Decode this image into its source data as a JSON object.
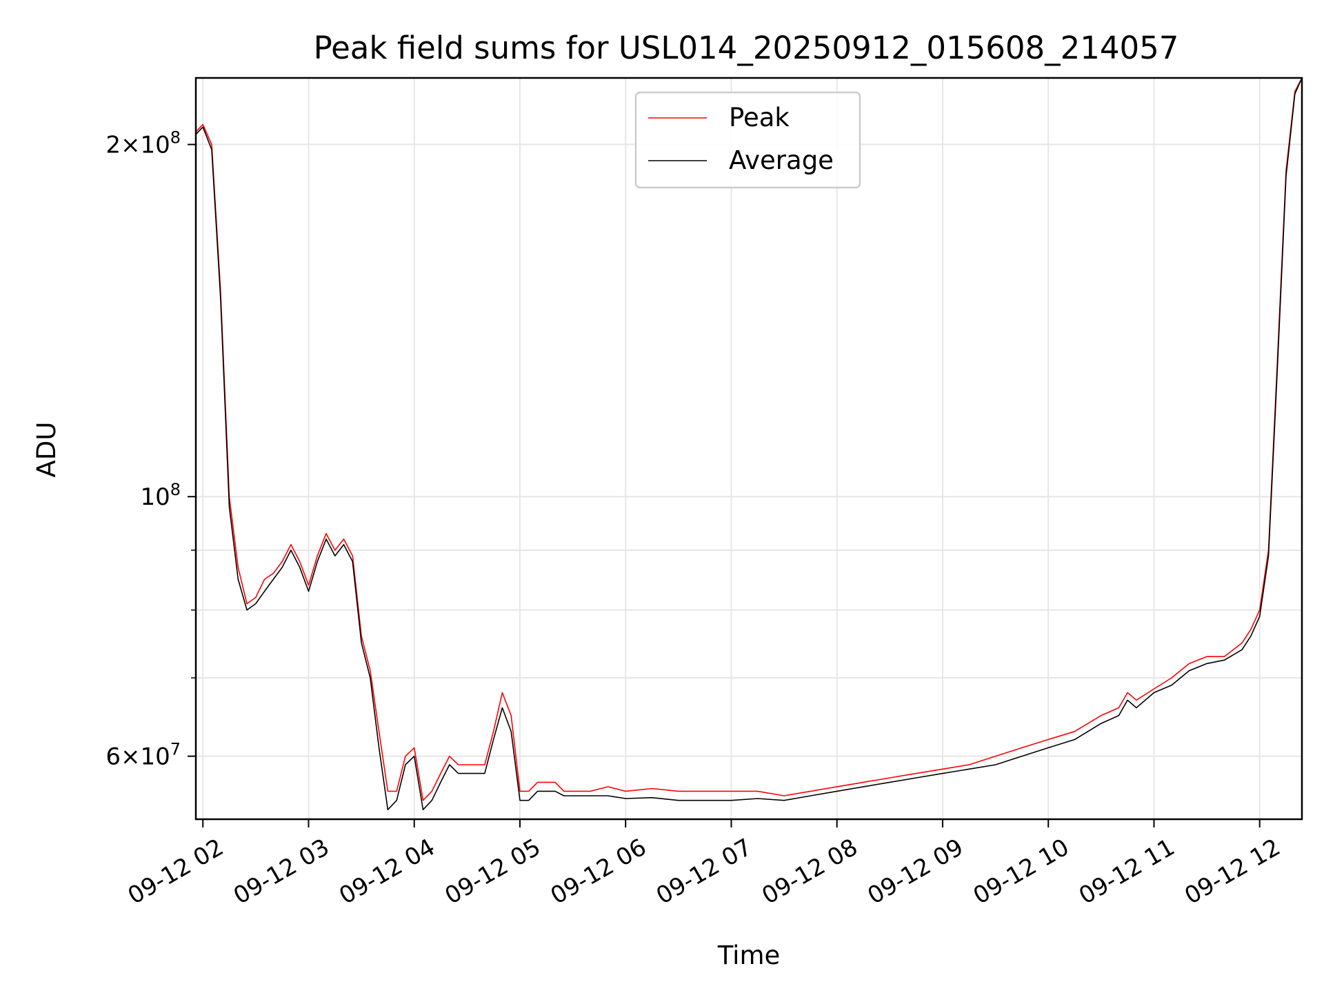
{
  "chart_data": {
    "type": "line",
    "title": "Peak field sums for USL014_20250912_015608_214057",
    "xlabel": "Time",
    "ylabel": "ADU",
    "y_scale": "log",
    "grid": true,
    "legend_position": "upper center",
    "x_range": [
      "09-12 01:56",
      "09-12 12:24"
    ],
    "y_range": [
      53000000,
      228000000
    ],
    "x_ticks": [
      "09-12 02",
      "09-12 03",
      "09-12 04",
      "09-12 05",
      "09-12 06",
      "09-12 07",
      "09-12 08",
      "09-12 09",
      "09-12 10",
      "09-12 11",
      "09-12 12"
    ],
    "y_ticks": [
      {
        "value": 60000000,
        "base": "6",
        "exp": "7"
      },
      {
        "value": 100000000,
        "base": "",
        "exp": "8"
      },
      {
        "value": 200000000,
        "base": "2",
        "exp": "8"
      }
    ],
    "y_minor_ticks": [
      70000000,
      80000000,
      90000000
    ],
    "series": [
      {
        "name": "Peak",
        "color": "#ff0000",
        "x": [
          "09-12 01:56",
          "09-12 02:00",
          "09-12 02:05",
          "09-12 02:10",
          "09-12 02:15",
          "09-12 02:20",
          "09-12 02:25",
          "09-12 02:30",
          "09-12 02:35",
          "09-12 02:40",
          "09-12 02:45",
          "09-12 02:50",
          "09-12 02:55",
          "09-12 03:00",
          "09-12 03:05",
          "09-12 03:10",
          "09-12 03:15",
          "09-12 03:20",
          "09-12 03:25",
          "09-12 03:30",
          "09-12 03:35",
          "09-12 03:40",
          "09-12 03:45",
          "09-12 03:50",
          "09-12 03:55",
          "09-12 04:00",
          "09-12 04:05",
          "09-12 04:10",
          "09-12 04:15",
          "09-12 04:20",
          "09-12 04:25",
          "09-12 04:30",
          "09-12 04:35",
          "09-12 04:40",
          "09-12 04:45",
          "09-12 04:50",
          "09-12 04:55",
          "09-12 05:00",
          "09-12 05:05",
          "09-12 05:10",
          "09-12 05:15",
          "09-12 05:20",
          "09-12 05:25",
          "09-12 05:30",
          "09-12 05:40",
          "09-12 05:50",
          "09-12 06:00",
          "09-12 06:15",
          "09-12 06:30",
          "09-12 06:45",
          "09-12 07:00",
          "09-12 07:15",
          "09-12 07:30",
          "09-12 07:45",
          "09-12 08:00",
          "09-12 08:15",
          "09-12 08:30",
          "09-12 08:45",
          "09-12 09:00",
          "09-12 09:15",
          "09-12 09:30",
          "09-12 09:45",
          "09-12 10:00",
          "09-12 10:15",
          "09-12 10:30",
          "09-12 10:40",
          "09-12 10:45",
          "09-12 10:50",
          "09-12 11:00",
          "09-12 11:10",
          "09-12 11:20",
          "09-12 11:30",
          "09-12 11:40",
          "09-12 11:50",
          "09-12 11:55",
          "09-12 12:00",
          "09-12 12:05",
          "09-12 12:10",
          "09-12 12:15",
          "09-12 12:20",
          "09-12 12:24"
        ],
        "y": [
          205000000,
          208000000,
          200000000,
          150000000,
          100000000,
          87000000,
          81000000,
          82000000,
          85000000,
          86000000,
          88000000,
          91000000,
          88000000,
          84000000,
          89000000,
          93000000,
          90000000,
          92000000,
          89000000,
          76000000,
          71000000,
          63000000,
          56000000,
          56000000,
          60000000,
          61000000,
          55000000,
          56000000,
          58000000,
          60000000,
          59000000,
          59000000,
          59000000,
          59000000,
          63000000,
          68000000,
          65000000,
          56000000,
          56000000,
          57000000,
          57000000,
          57000000,
          56000000,
          56000000,
          56000000,
          56500000,
          56000000,
          56300000,
          56000000,
          56000000,
          56000000,
          56000000,
          55500000,
          56000000,
          56500000,
          57000000,
          57500000,
          58000000,
          58500000,
          59000000,
          60000000,
          61000000,
          62000000,
          63000000,
          65000000,
          66000000,
          68000000,
          67000000,
          68500000,
          70000000,
          72000000,
          73000000,
          73000000,
          75000000,
          77000000,
          80000000,
          90000000,
          130000000,
          190000000,
          222000000,
          228000000
        ]
      },
      {
        "name": "Average",
        "color": "#000000",
        "x": [
          "09-12 01:56",
          "09-12 02:00",
          "09-12 02:05",
          "09-12 02:10",
          "09-12 02:15",
          "09-12 02:20",
          "09-12 02:25",
          "09-12 02:30",
          "09-12 02:35",
          "09-12 02:40",
          "09-12 02:45",
          "09-12 02:50",
          "09-12 02:55",
          "09-12 03:00",
          "09-12 03:05",
          "09-12 03:10",
          "09-12 03:15",
          "09-12 03:20",
          "09-12 03:25",
          "09-12 03:30",
          "09-12 03:35",
          "09-12 03:40",
          "09-12 03:45",
          "09-12 03:50",
          "09-12 03:55",
          "09-12 04:00",
          "09-12 04:05",
          "09-12 04:10",
          "09-12 04:15",
          "09-12 04:20",
          "09-12 04:25",
          "09-12 04:30",
          "09-12 04:35",
          "09-12 04:40",
          "09-12 04:45",
          "09-12 04:50",
          "09-12 04:55",
          "09-12 05:00",
          "09-12 05:05",
          "09-12 05:10",
          "09-12 05:15",
          "09-12 05:20",
          "09-12 05:25",
          "09-12 05:30",
          "09-12 05:40",
          "09-12 05:50",
          "09-12 06:00",
          "09-12 06:15",
          "09-12 06:30",
          "09-12 06:45",
          "09-12 07:00",
          "09-12 07:15",
          "09-12 07:30",
          "09-12 07:45",
          "09-12 08:00",
          "09-12 08:15",
          "09-12 08:30",
          "09-12 08:45",
          "09-12 09:00",
          "09-12 09:15",
          "09-12 09:30",
          "09-12 09:45",
          "09-12 10:00",
          "09-12 10:15",
          "09-12 10:30",
          "09-12 10:40",
          "09-12 10:45",
          "09-12 10:50",
          "09-12 11:00",
          "09-12 11:10",
          "09-12 11:20",
          "09-12 11:30",
          "09-12 11:40",
          "09-12 11:50",
          "09-12 11:55",
          "09-12 12:00",
          "09-12 12:05",
          "09-12 12:10",
          "09-12 12:15",
          "09-12 12:20",
          "09-12 12:24"
        ],
        "y": [
          204000000,
          207000000,
          198000000,
          148000000,
          98000000,
          85000000,
          80000000,
          81000000,
          83000000,
          85000000,
          87000000,
          90000000,
          87000000,
          83000000,
          88000000,
          92000000,
          89000000,
          91000000,
          88000000,
          75000000,
          70000000,
          61000000,
          54000000,
          55000000,
          59000000,
          60000000,
          54000000,
          55000000,
          57000000,
          59000000,
          58000000,
          58000000,
          58000000,
          58000000,
          62000000,
          66000000,
          63000000,
          55000000,
          55000000,
          56000000,
          56000000,
          56000000,
          55500000,
          55500000,
          55500000,
          55500000,
          55200000,
          55300000,
          55000000,
          55000000,
          55000000,
          55200000,
          55000000,
          55500000,
          56000000,
          56500000,
          57000000,
          57500000,
          58000000,
          58500000,
          59000000,
          60000000,
          61000000,
          62000000,
          64000000,
          65000000,
          67000000,
          66000000,
          68000000,
          69000000,
          71000000,
          72000000,
          72500000,
          74000000,
          76000000,
          79000000,
          89000000,
          128000000,
          188000000,
          221000000,
          228000000
        ]
      }
    ]
  }
}
